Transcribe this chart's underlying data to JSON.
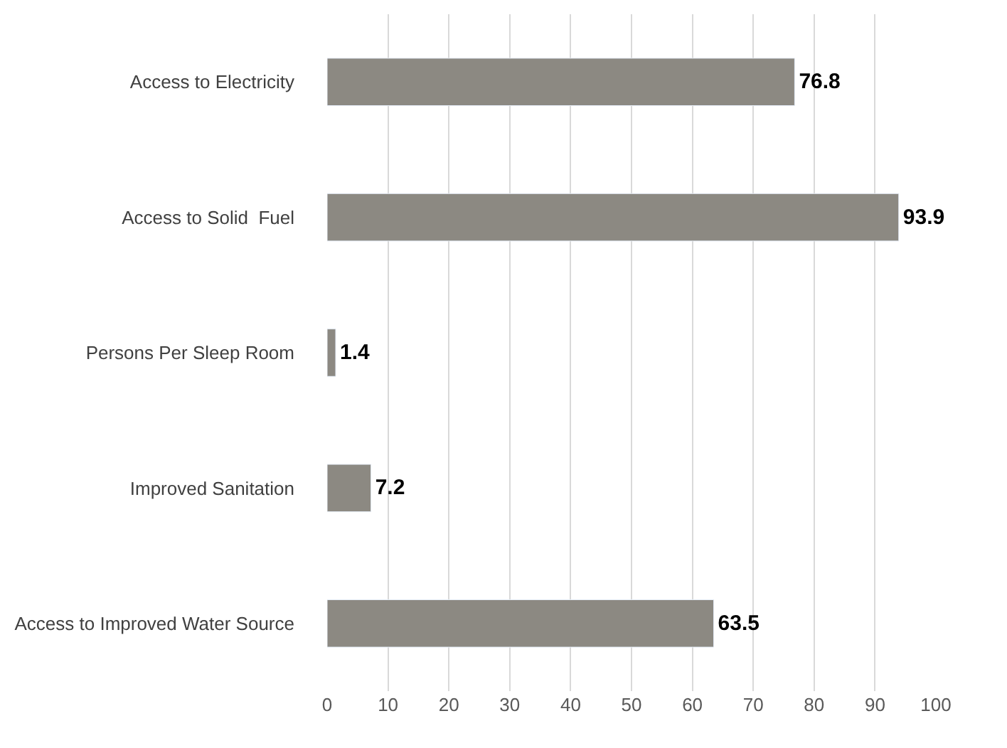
{
  "chart_data": {
    "type": "bar",
    "orientation": "horizontal",
    "categories": [
      "Access to Electricity",
      "Access to Solid  Fuel",
      "Persons Per Sleep Room",
      "Improved Sanitation",
      "Access to Improved Water Source"
    ],
    "values": [
      76.8,
      93.9,
      1.4,
      7.2,
      63.5
    ],
    "color": "#8c8982",
    "xlim": [
      0,
      100
    ],
    "xticks": [
      0,
      10,
      20,
      30,
      40,
      50,
      60,
      70,
      80,
      90,
      100
    ],
    "grid": "x",
    "data_labels": true
  }
}
